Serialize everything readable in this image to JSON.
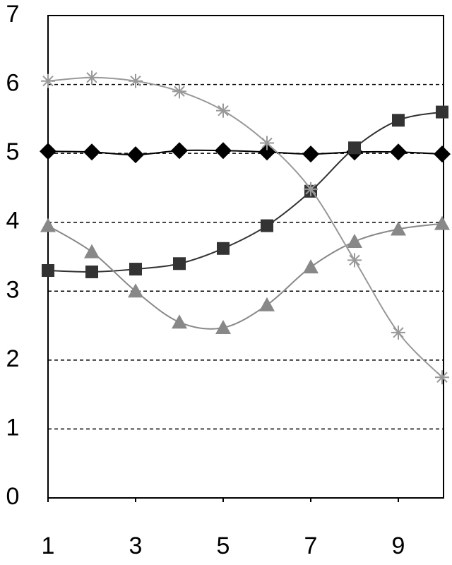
{
  "chart_data": {
    "type": "line",
    "x": [
      1,
      2,
      3,
      4,
      5,
      6,
      7,
      8,
      9,
      10
    ],
    "series": [
      {
        "color": "#000000",
        "marker": "diamond",
        "values": [
          5.03,
          5.02,
          4.98,
          5.04,
          5.04,
          5.02,
          4.99,
          5.02,
          5.02,
          4.99
        ]
      },
      {
        "color": "#333333",
        "marker": "square",
        "values": [
          3.3,
          3.28,
          3.32,
          3.4,
          3.62,
          3.95,
          4.45,
          5.08,
          5.48,
          5.6
        ]
      },
      {
        "color": "#888888",
        "marker": "triangle",
        "values": [
          3.95,
          3.57,
          3.0,
          2.55,
          2.47,
          2.8,
          3.35,
          3.72,
          3.9,
          3.98
        ]
      },
      {
        "color": "#999999",
        "marker": "star",
        "values": [
          6.05,
          6.1,
          6.05,
          5.9,
          5.62,
          5.15,
          4.48,
          3.45,
          2.4,
          1.75
        ]
      }
    ],
    "xlim": [
      1,
      10
    ],
    "xticks": [
      1,
      3,
      5,
      7,
      9
    ],
    "ylim": [
      0,
      7
    ],
    "yticks": [
      0,
      1,
      2,
      3,
      4,
      5,
      6,
      7
    ],
    "grid": true
  }
}
